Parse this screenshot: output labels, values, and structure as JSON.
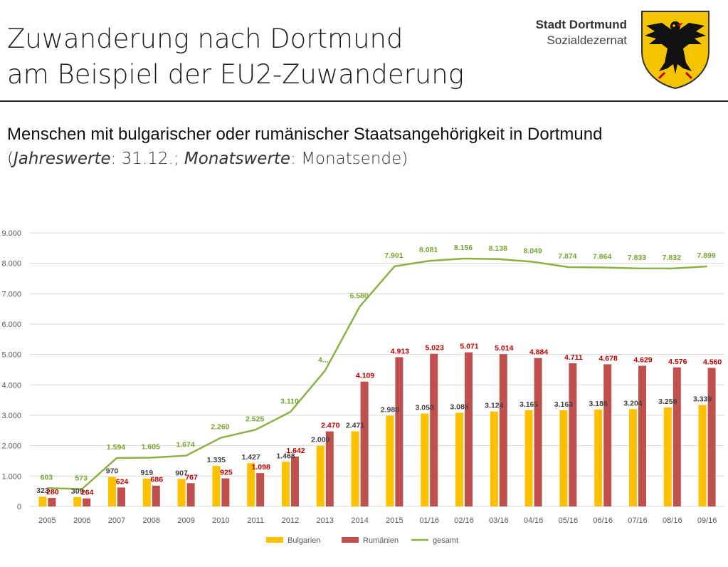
{
  "header": {
    "title_line1": "Zuwanderung nach Dortmund",
    "title_line2": "am Beispiel der EU2-Zuwanderung",
    "org_name": "Stadt Dortmund",
    "org_sub": "Sozialdezernat"
  },
  "subtitle": "Menschen mit bulgarischer oder rumänischer Staatsangehörigkeit in Dortmund",
  "note": {
    "open": "(",
    "jahres": "Jahreswerte",
    "jahres_val": ": 31.12.; ",
    "monats": "Monatswerte",
    "monats_val": ": Monatsende)"
  },
  "colors": {
    "bulgarien": "#FFC000",
    "rumaenien": "#C0504D",
    "gesamt": "#8DB243",
    "label_bg": "#404040",
    "label_ro": "#C00000",
    "label_ges": "#77A52E"
  },
  "chart_data": {
    "type": "bar",
    "categories": [
      "2005",
      "2006",
      "2007",
      "2008",
      "2009",
      "2010",
      "2011",
      "2012",
      "2013",
      "2014",
      "2015",
      "01/16",
      "02/16",
      "03/16",
      "04/16",
      "05/16",
      "06/16",
      "07/16",
      "08/16",
      "09/16"
    ],
    "ylim": [
      0,
      9000
    ],
    "yticks": [
      0,
      1000,
      2000,
      3000,
      4000,
      5000,
      6000,
      7000,
      8000,
      9000
    ],
    "ytick_labels": [
      "0",
      "1.000",
      "2.000",
      "3.000",
      "4.000",
      "5.000",
      "6.000",
      "7.000",
      "8.000",
      "9.000"
    ],
    "grid": true,
    "legend_position": "bottom",
    "series": [
      {
        "name": "Bulgarien",
        "type": "bar",
        "values": [
          323,
          309,
          970,
          919,
          907,
          1335,
          1427,
          1468,
          2000,
          2471,
          2988,
          3058,
          3085,
          3124,
          3165,
          3163,
          3186,
          3204,
          3256,
          3339
        ],
        "labels": [
          "323",
          "309",
          "970",
          "919",
          "907",
          "1.335",
          "1.427",
          "1.468",
          "2.000",
          "2.471",
          "2.988",
          "3.058",
          "3.085",
          "3.124",
          "3.165",
          "3.163",
          "3.186",
          "3.204",
          "3.256",
          "3.339"
        ]
      },
      {
        "name": "Rumänien",
        "type": "bar",
        "values": [
          280,
          264,
          624,
          686,
          767,
          925,
          1098,
          1642,
          2470,
          4109,
          4913,
          5023,
          5071,
          5014,
          4884,
          4711,
          4678,
          4629,
          4576,
          4560
        ],
        "labels": [
          "280",
          "264",
          "624",
          "686",
          "767",
          "925",
          "1.098",
          "1.642",
          "2.470",
          "4.109",
          "4.913",
          "5.023",
          "5.071",
          "5.014",
          "4.884",
          "4.711",
          "4.678",
          "4.629",
          "4.576",
          "4.560"
        ]
      },
      {
        "name": "gesamt",
        "type": "line",
        "values": [
          603,
          573,
          1594,
          1605,
          1674,
          2260,
          2525,
          3110,
          4470,
          6580,
          7901,
          8081,
          8156,
          8138,
          8049,
          7874,
          7864,
          7833,
          7832,
          7899
        ],
        "labels": [
          "603",
          "573",
          "1.594",
          "1.605",
          "1.674",
          "2.260",
          "2.525",
          "3.110",
          "4....",
          "6.580",
          "7.901",
          "8.081",
          "8.156",
          "8.138",
          "8.049",
          "7.874",
          "7.864",
          "7.833",
          "7.832",
          "7.899"
        ]
      }
    ]
  }
}
